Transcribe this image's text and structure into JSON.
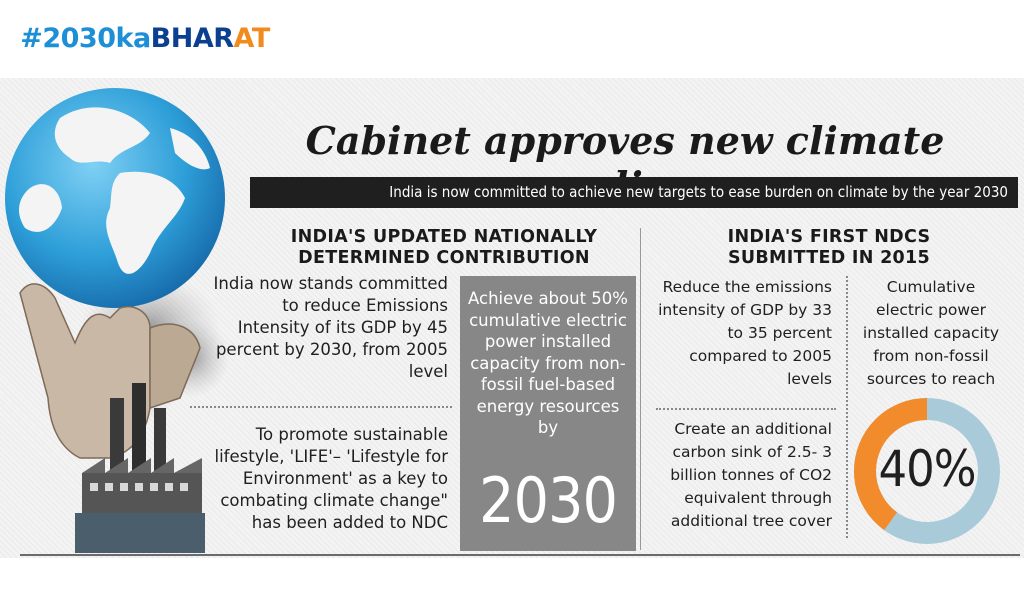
{
  "hashtag": {
    "part1": "#2030ka",
    "part2": "BHAR",
    "part3": "AT"
  },
  "title": "Cabinet approves new climate policy",
  "subtitle": "India is now committed to achieve new targets to ease burden on climate by the year 2030",
  "left_section": {
    "heading_line1": "INDIA'S UPDATED NATIONALLY",
    "heading_line2": "DETERMINED CONTRIBUTION",
    "point1": "India now stands committed to reduce Emissions Intensity of its GDP by 45 percent by 2030, from 2005 level",
    "point2": "To promote sustainable lifestyle, 'LIFE'– 'Lifestyle for Environment' as a key to combating climate change\" has been added to NDC",
    "highlight_text": "Achieve about 50% cumulative electric power installed capacity from non-fossil fuel-based energy resources by",
    "highlight_year": "2030"
  },
  "right_section": {
    "heading_line1": "INDIA'S FIRST NDCS",
    "heading_line2": "SUBMITTED IN 2015",
    "point1": "Reduce the emissions intensity of GDP by 33 to 35 percent compared to 2005 levels",
    "point2": "Create an additional carbon sink of 2.5- 3 billion tonnes of CO2 equivalent through additional tree cover",
    "point3": "Cumulative electric power installed capacity from non-fossil sources to reach",
    "donut_value": 40,
    "donut_label": "40%"
  },
  "colors": {
    "hashtag_blue": "#1d8fd6",
    "hashtag_dark_blue": "#0b3f8f",
    "hashtag_orange": "#f28b1e",
    "subtitle_bar": "#1f1f1f",
    "highlight_box": "#878787",
    "donut_fill": "#f28b2b",
    "donut_rest": "#a9cbd9"
  },
  "icons": [
    "globe-icon",
    "hand-icon",
    "factory-icon"
  ]
}
